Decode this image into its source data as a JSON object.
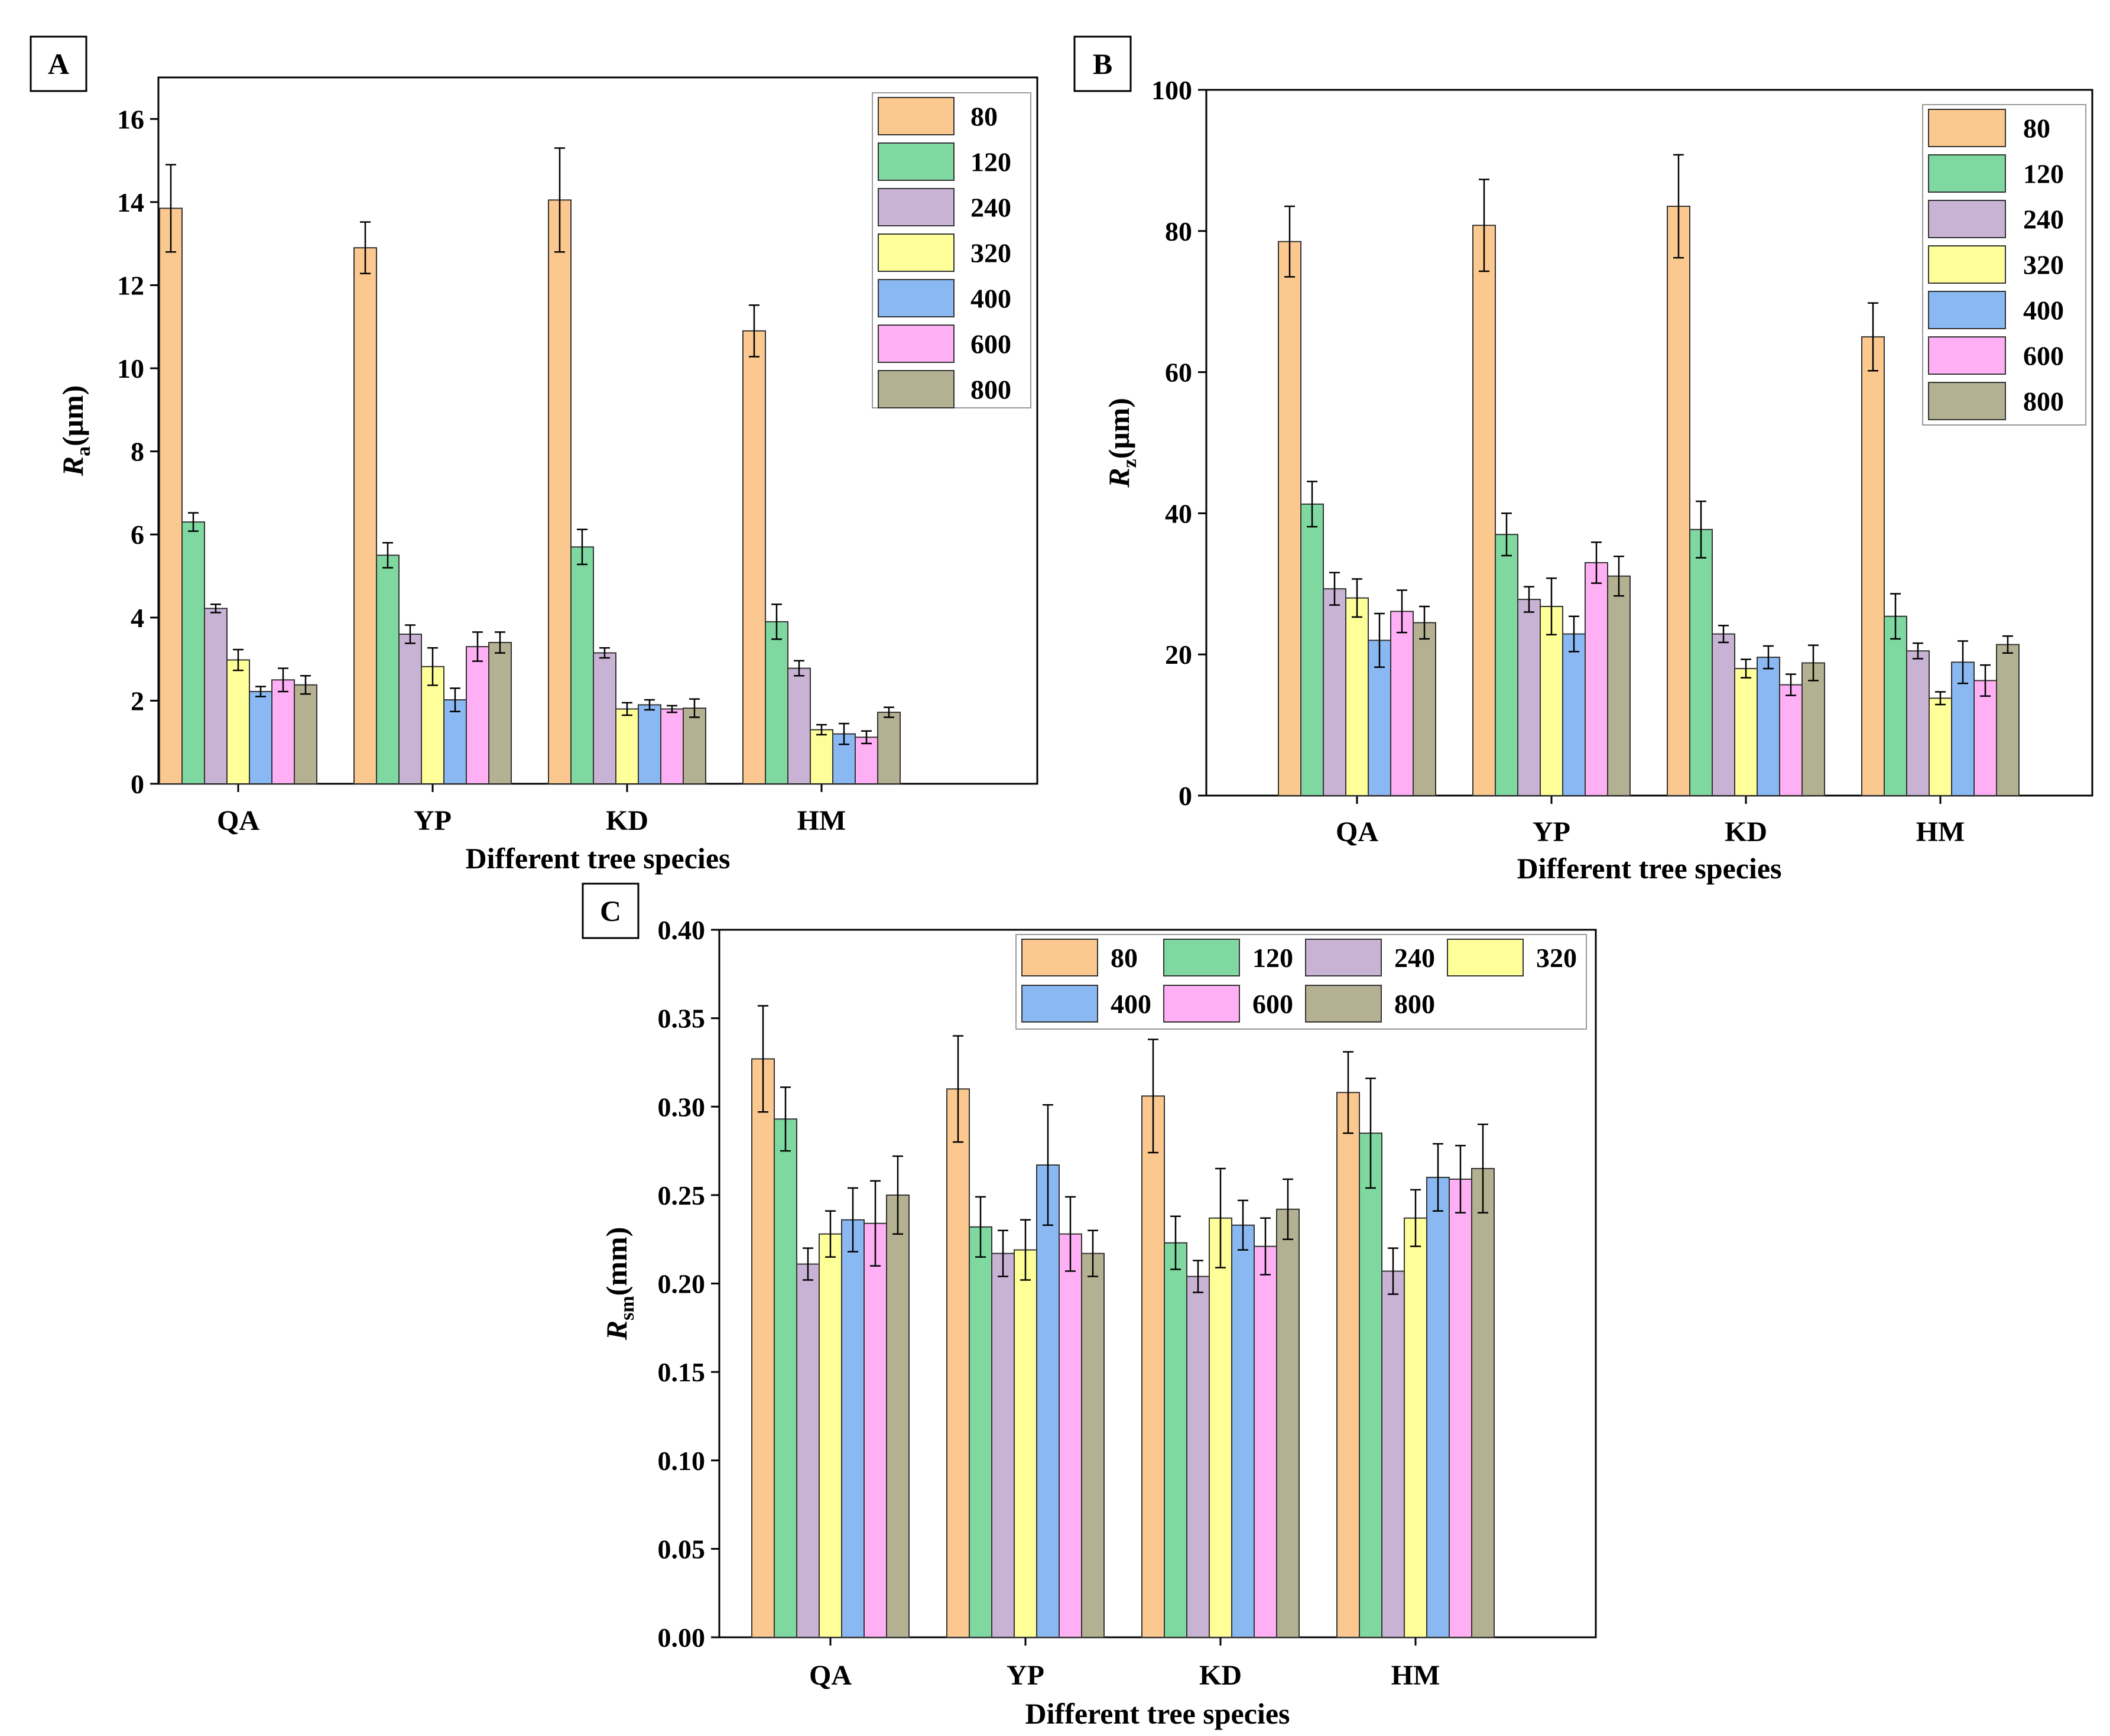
{
  "chart_data": [
    {
      "type": "bar",
      "panel_label": "A",
      "title": "",
      "xlabel": "Different tree species",
      "ylabel": {
        "symbol": "R",
        "subscript": "a",
        "unit": "(μm)"
      },
      "ylim": [
        0,
        17
      ],
      "yticks": [
        0,
        2,
        4,
        6,
        8,
        10,
        12,
        14,
        16
      ],
      "tick_labels": [
        "0",
        "2",
        "4",
        "6",
        "8",
        "10",
        "12",
        "14",
        "16"
      ],
      "categories": [
        "QA",
        "YP",
        "KD",
        "HM"
      ],
      "legend_position": "top-right",
      "series": [
        {
          "name": "80",
          "values": [
            13.85,
            12.9,
            14.05,
            10.9
          ],
          "errors": [
            1.05,
            0.62,
            1.25,
            0.62
          ]
        },
        {
          "name": "120",
          "values": [
            6.3,
            5.5,
            5.7,
            3.9
          ],
          "errors": [
            0.22,
            0.3,
            0.42,
            0.42
          ]
        },
        {
          "name": "240",
          "values": [
            4.22,
            3.6,
            3.15,
            2.78
          ],
          "errors": [
            0.1,
            0.22,
            0.12,
            0.18
          ]
        },
        {
          "name": "320",
          "values": [
            2.98,
            2.82,
            1.8,
            1.3
          ],
          "errors": [
            0.25,
            0.45,
            0.15,
            0.12
          ]
        },
        {
          "name": "400",
          "values": [
            2.22,
            2.02,
            1.9,
            1.2
          ],
          "errors": [
            0.12,
            0.28,
            0.12,
            0.25
          ]
        },
        {
          "name": "600",
          "values": [
            2.5,
            3.3,
            1.8,
            1.12
          ],
          "errors": [
            0.28,
            0.35,
            0.08,
            0.15
          ]
        },
        {
          "name": "800",
          "values": [
            2.38,
            3.4,
            1.82,
            1.72
          ],
          "errors": [
            0.22,
            0.25,
            0.22,
            0.12
          ]
        }
      ]
    },
    {
      "type": "bar",
      "panel_label": "B",
      "title": "",
      "xlabel": "Different tree species",
      "ylabel": {
        "symbol": "R",
        "subscript": "z",
        "unit": "(μm)"
      },
      "ylim": [
        0,
        100
      ],
      "yticks": [
        0,
        20,
        40,
        60,
        80,
        100
      ],
      "tick_labels": [
        "0",
        "20",
        "40",
        "60",
        "80",
        "100"
      ],
      "categories": [
        "QA",
        "YP",
        "KD",
        "HM"
      ],
      "legend_position": "top-right",
      "series": [
        {
          "name": "80",
          "values": [
            78.5,
            80.8,
            83.5,
            65.0
          ],
          "errors": [
            5.0,
            6.5,
            7.3,
            4.8
          ]
        },
        {
          "name": "120",
          "values": [
            41.3,
            37.0,
            37.7,
            25.4
          ],
          "errors": [
            3.2,
            3.0,
            4.0,
            3.2
          ]
        },
        {
          "name": "240",
          "values": [
            29.3,
            27.8,
            22.9,
            20.5
          ],
          "errors": [
            2.3,
            1.8,
            1.2,
            1.1
          ]
        },
        {
          "name": "320",
          "values": [
            28.0,
            26.8,
            18.0,
            13.8
          ],
          "errors": [
            2.7,
            4.0,
            1.3,
            0.9
          ]
        },
        {
          "name": "400",
          "values": [
            22.0,
            22.9,
            19.6,
            18.9
          ],
          "errors": [
            3.8,
            2.5,
            1.6,
            3.0
          ]
        },
        {
          "name": "600",
          "values": [
            26.1,
            33.0,
            15.7,
            16.3
          ],
          "errors": [
            3.0,
            2.9,
            1.5,
            2.2
          ]
        },
        {
          "name": "800",
          "values": [
            24.5,
            31.1,
            18.8,
            21.4
          ],
          "errors": [
            2.3,
            2.8,
            2.5,
            1.2
          ]
        }
      ]
    },
    {
      "type": "bar",
      "panel_label": "C",
      "title": "",
      "xlabel": "Different tree species",
      "ylabel": {
        "symbol": "R",
        "subscript": "sm",
        "unit": "(mm)"
      },
      "ylim": [
        0,
        0.4
      ],
      "yticks": [
        0,
        0.05,
        0.1,
        0.15,
        0.2,
        0.25,
        0.3,
        0.35,
        0.4
      ],
      "tick_labels": [
        "0.00",
        "0.05",
        "0.10",
        "0.15",
        "0.20",
        "0.25",
        "0.30",
        "0.35",
        "0.40"
      ],
      "categories": [
        "QA",
        "YP",
        "KD",
        "HM"
      ],
      "legend_position": "top-right",
      "series": [
        {
          "name": "80",
          "values": [
            0.327,
            0.31,
            0.306,
            0.308
          ],
          "errors": [
            0.03,
            0.03,
            0.032,
            0.023
          ]
        },
        {
          "name": "120",
          "values": [
            0.293,
            0.232,
            0.223,
            0.285
          ],
          "errors": [
            0.018,
            0.017,
            0.015,
            0.031
          ]
        },
        {
          "name": "240",
          "values": [
            0.211,
            0.217,
            0.204,
            0.207
          ],
          "errors": [
            0.009,
            0.013,
            0.009,
            0.013
          ]
        },
        {
          "name": "320",
          "values": [
            0.228,
            0.219,
            0.237,
            0.237
          ],
          "errors": [
            0.013,
            0.017,
            0.028,
            0.016
          ]
        },
        {
          "name": "400",
          "values": [
            0.236,
            0.267,
            0.233,
            0.26
          ],
          "errors": [
            0.018,
            0.034,
            0.014,
            0.019
          ]
        },
        {
          "name": "600",
          "values": [
            0.234,
            0.228,
            0.221,
            0.259
          ],
          "errors": [
            0.024,
            0.021,
            0.016,
            0.019
          ]
        },
        {
          "name": "800",
          "values": [
            0.25,
            0.217,
            0.242,
            0.265
          ],
          "errors": [
            0.022,
            0.013,
            0.017,
            0.025
          ]
        }
      ]
    }
  ],
  "colors": {
    "80": "#FBC98F",
    "120": "#7ED8A0",
    "240": "#C8B3D4",
    "320": "#FFFF99",
    "400": "#8AB8F2",
    "600": "#FFB0F5",
    "800": "#B4B092"
  }
}
